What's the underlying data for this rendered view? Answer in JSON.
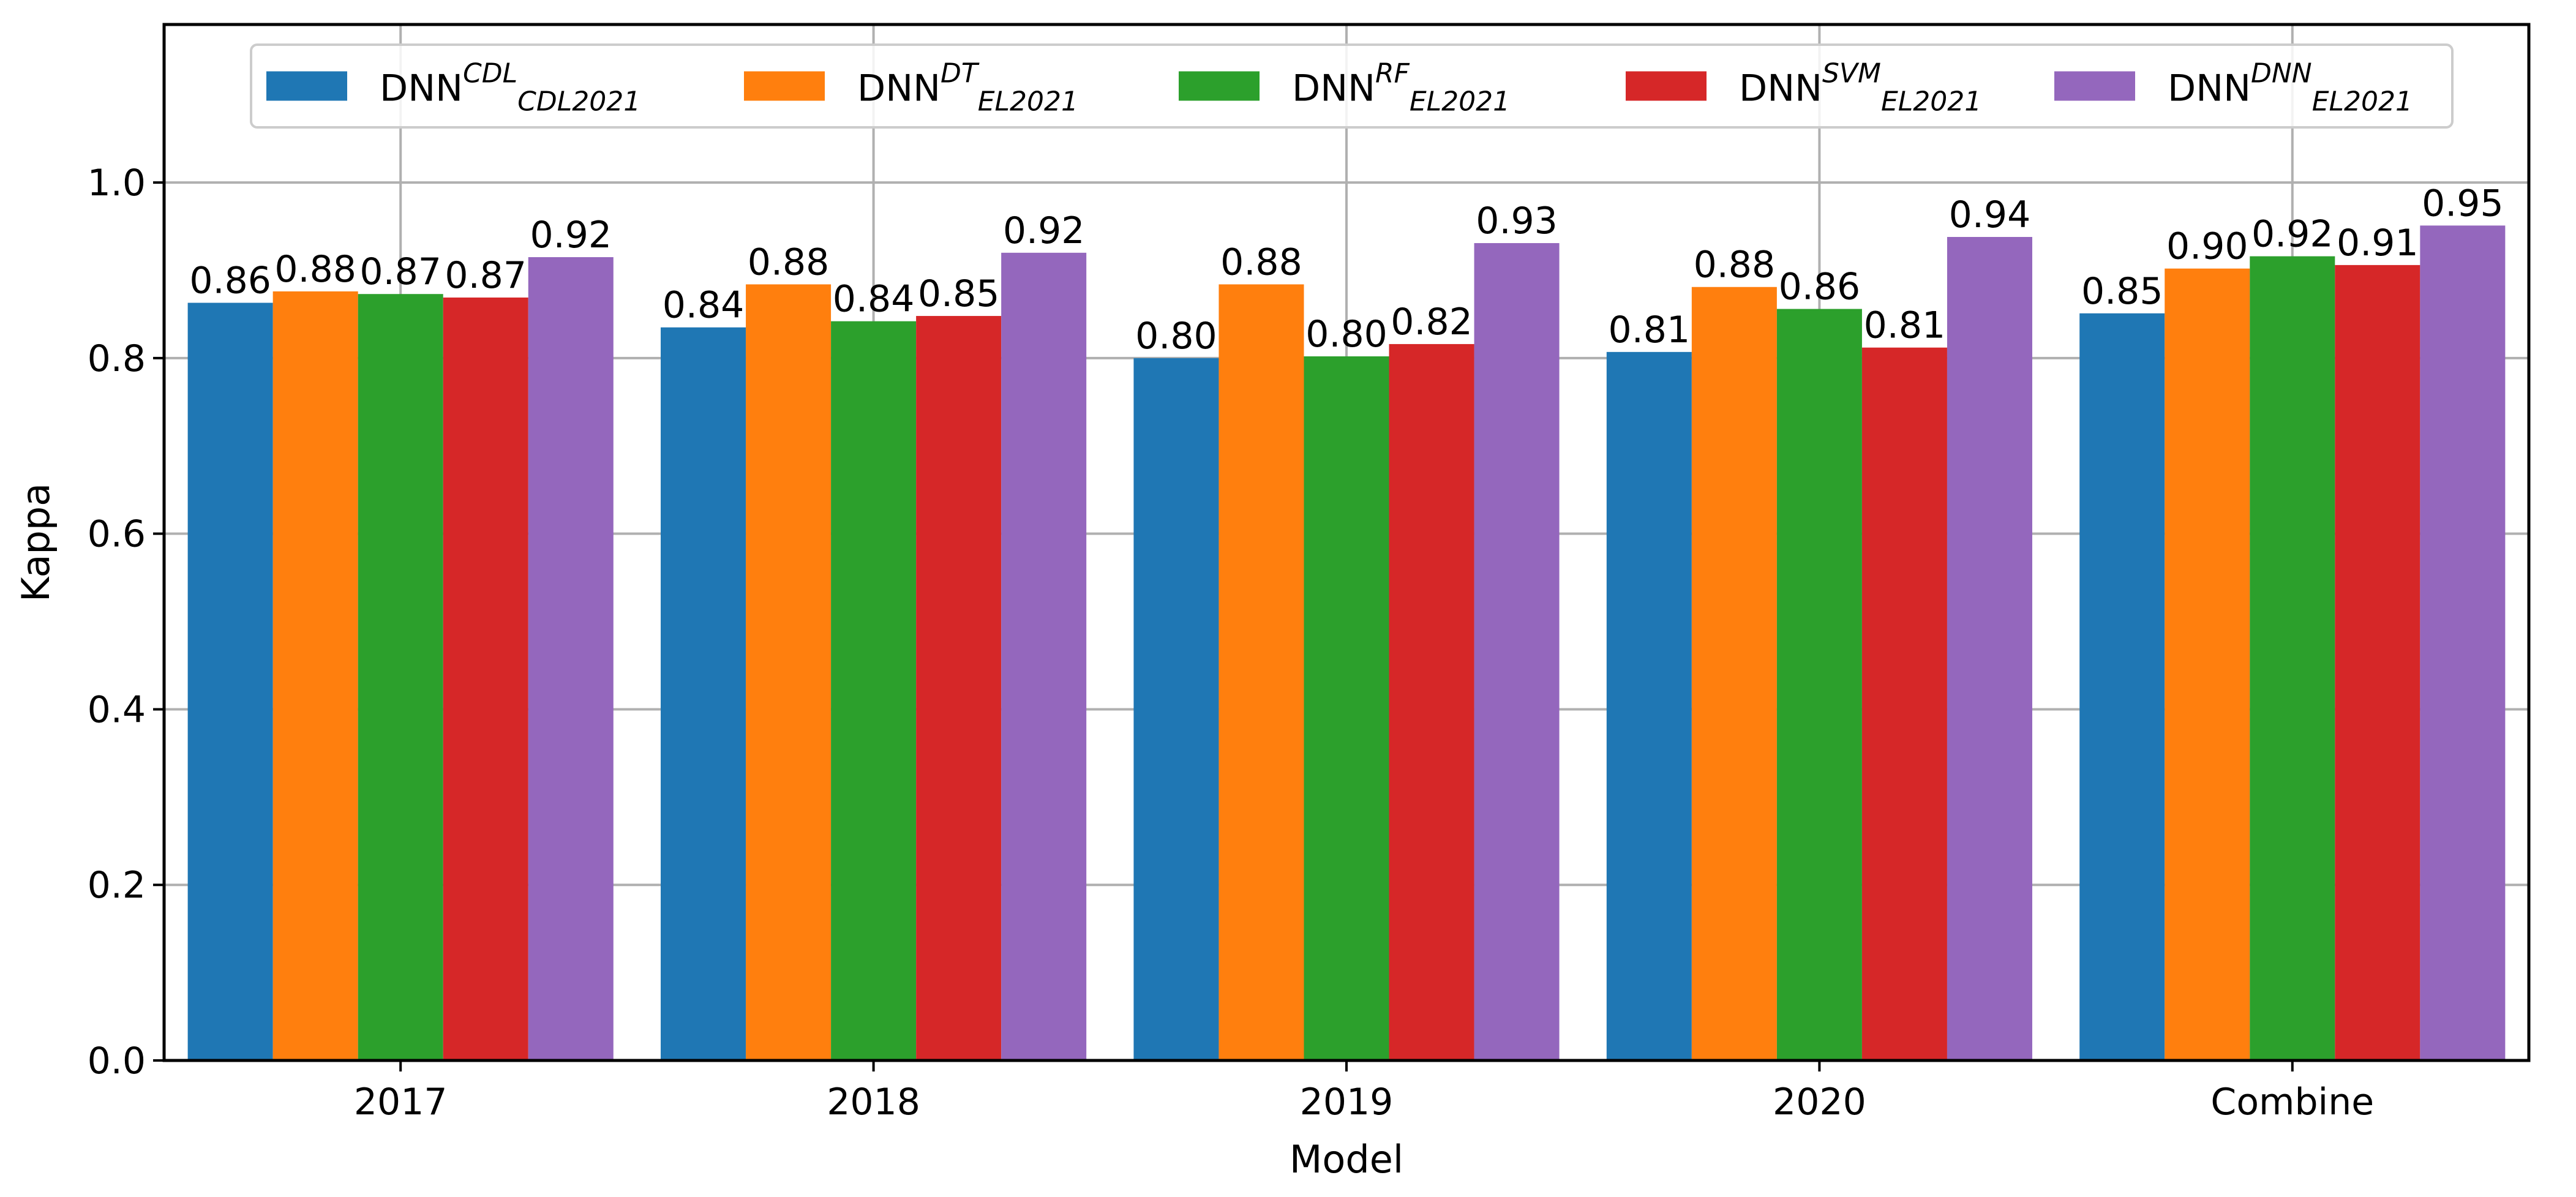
{
  "chart_data": {
    "type": "bar",
    "title": "",
    "xlabel": "Model",
    "ylabel": "Kappa",
    "ylim": [
      0,
      1.18
    ],
    "yticks": [
      0.0,
      0.2,
      0.4,
      0.6,
      0.8,
      1.0
    ],
    "ytick_labels": [
      "0.0",
      "0.2",
      "0.4",
      "0.6",
      "0.8",
      "1.0"
    ],
    "grid": true,
    "legend_position": "top-center",
    "categories": [
      "2017",
      "2018",
      "2019",
      "2020",
      "Combine"
    ],
    "series": [
      {
        "name": "DNN CDL CDL2021",
        "legend": {
          "base": "DNN",
          "sup": "CDL",
          "sub": "CDL2021"
        },
        "color": "#1f77b4",
        "values": [
          0.863,
          0.835,
          0.8,
          0.807,
          0.851
        ],
        "labels": [
          "0.86",
          "0.84",
          "0.80",
          "0.81",
          "0.85"
        ]
      },
      {
        "name": "DNN DT EL2021",
        "legend": {
          "base": "DNN",
          "sup": "DT",
          "sub": "EL2021"
        },
        "color": "#ff7f0e",
        "values": [
          0.876,
          0.884,
          0.884,
          0.881,
          0.902
        ],
        "labels": [
          "0.88",
          "0.88",
          "0.88",
          "0.88",
          "0.90"
        ]
      },
      {
        "name": "DNN RF EL2021",
        "legend": {
          "base": "DNN",
          "sup": "RF",
          "sub": "EL2021"
        },
        "color": "#2ca02c",
        "values": [
          0.873,
          0.842,
          0.802,
          0.856,
          0.916
        ],
        "labels": [
          "0.87",
          "0.84",
          "0.80",
          "0.86",
          "0.92"
        ]
      },
      {
        "name": "DNN SVM EL2021",
        "legend": {
          "base": "DNN",
          "sup": "SVM",
          "sub": "EL2021"
        },
        "color": "#d62728",
        "values": [
          0.869,
          0.848,
          0.816,
          0.812,
          0.906
        ],
        "labels": [
          "0.87",
          "0.85",
          "0.82",
          "0.81",
          "0.91"
        ]
      },
      {
        "name": "DNN DNN EL2021",
        "legend": {
          "base": "DNN",
          "sup": "DNN",
          "sub": "EL2021"
        },
        "color": "#9467bd",
        "values": [
          0.915,
          0.92,
          0.931,
          0.938,
          0.951
        ],
        "labels": [
          "0.92",
          "0.92",
          "0.93",
          "0.94",
          "0.95"
        ]
      }
    ]
  }
}
